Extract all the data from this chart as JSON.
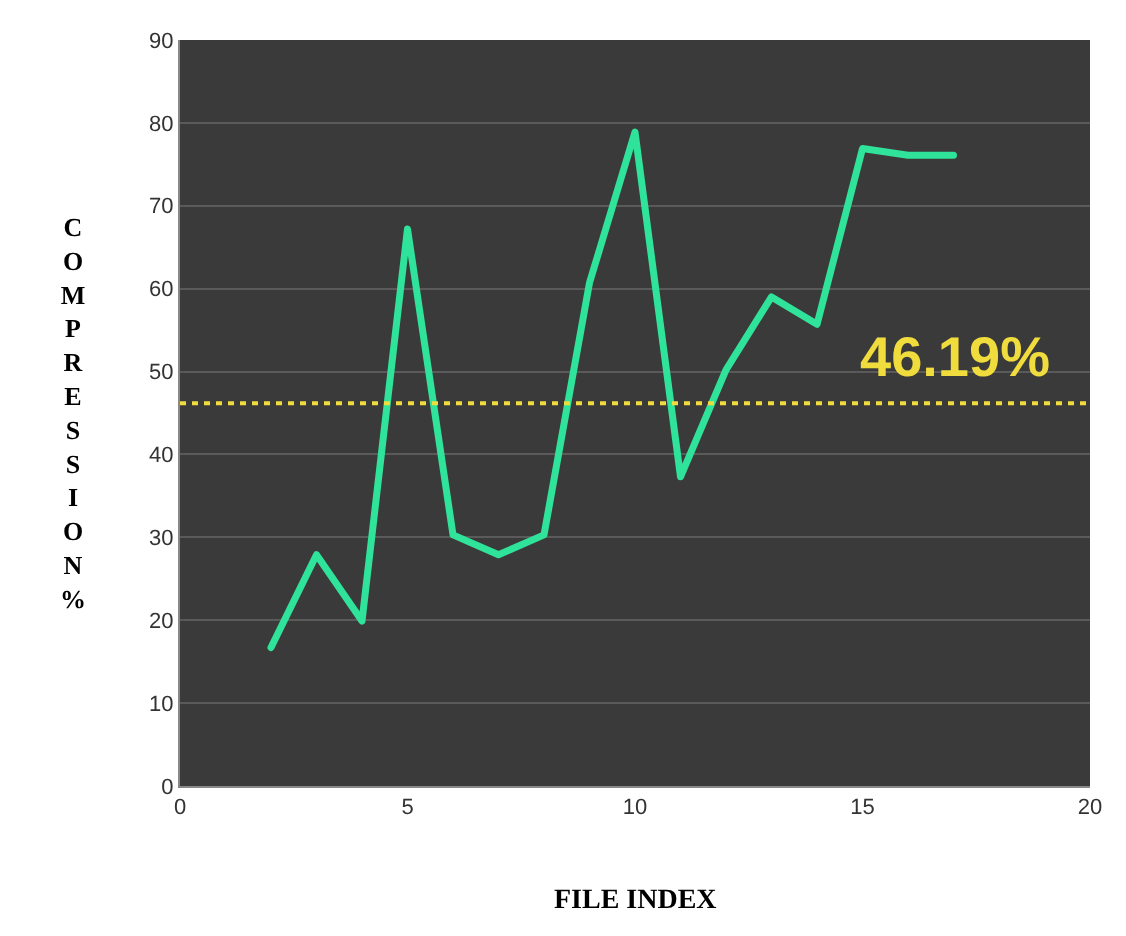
{
  "chart_data": {
    "type": "line",
    "xlabel": "FILE INDEX",
    "ylabel": "COMPRESSION%",
    "x": [
      2,
      3,
      4,
      5,
      6,
      7,
      8,
      9,
      10,
      11,
      12,
      13,
      14,
      15,
      16,
      17
    ],
    "series": [
      {
        "color": "#2fe39a",
        "values": [
          16.7,
          27.9,
          19.9,
          67.2,
          30.3,
          27.9,
          30.3,
          60.7,
          78.9,
          37.3,
          50.2,
          59,
          55.7,
          76.9,
          76.1,
          76.1
        ]
      }
    ],
    "xlim": [
      0,
      20
    ],
    "xticks": [
      0,
      5,
      10,
      15,
      20
    ],
    "ylim": [
      0,
      90
    ],
    "yticks": [
      0,
      10,
      20,
      30,
      40,
      50,
      60,
      70,
      80,
      90
    ],
    "grid": "y",
    "legend": false,
    "marker": "none",
    "line_style": "solid",
    "ref_lines": [
      {
        "axis": "y",
        "value": 46.19,
        "label": "46.19%",
        "color": "#f0dc3c",
        "line_style": "dotted"
      }
    ]
  }
}
